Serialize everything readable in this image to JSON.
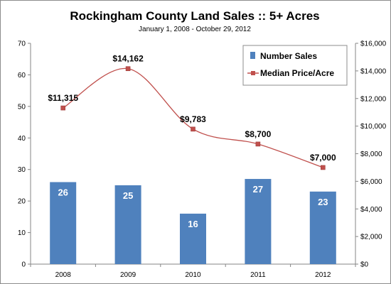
{
  "chart_data": {
    "type": "bar",
    "title": "Rockingham  County Land Sales  ::  5+ Acres",
    "subtitle": "January 1, 2008 - October 29, 2012",
    "categories": [
      "2008",
      "2009",
      "2010",
      "2011",
      "2012"
    ],
    "series": [
      {
        "name": "Number Sales",
        "type": "bar",
        "axis": "left",
        "color": "#4f81bd",
        "values": [
          26,
          25,
          16,
          27,
          23
        ],
        "labels": [
          "26",
          "25",
          "16",
          "27",
          "23"
        ]
      },
      {
        "name": "Median Price/Acre",
        "type": "line",
        "axis": "right",
        "color": "#c0504d",
        "smooth": true,
        "values": [
          11315,
          14162,
          9783,
          8700,
          7000
        ],
        "labels": [
          "$11,315",
          "$14,162",
          "$9,783",
          "$8,700",
          "$7,000"
        ]
      }
    ],
    "y_left": {
      "ylim": [
        0,
        70
      ],
      "ticks": [
        0,
        10,
        20,
        30,
        40,
        50,
        60,
        70
      ],
      "tick_labels": [
        "0",
        "10",
        "20",
        "30",
        "40",
        "50",
        "60",
        "70"
      ]
    },
    "y_right": {
      "ylim": [
        0,
        16000
      ],
      "ticks": [
        0,
        2000,
        4000,
        6000,
        8000,
        10000,
        12000,
        14000,
        16000
      ],
      "tick_labels": [
        "$0",
        "$2,000",
        "$4,000",
        "$6,000",
        "$8,000",
        "$10,000",
        "$12,000",
        "$14,000",
        "$16,000"
      ]
    },
    "grid": false,
    "legend_position": "top-right"
  }
}
